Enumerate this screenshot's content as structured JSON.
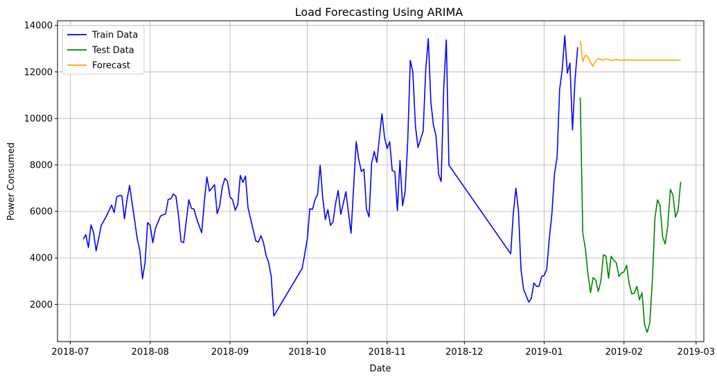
{
  "chart_data": {
    "type": "line",
    "title": "Load Forecasting Using ARIMA",
    "xlabel": "Date",
    "ylabel": "Power Consumed",
    "xlim": [
      "2018-06-26",
      "2019-03-04"
    ],
    "ylim": [
      400,
      14200
    ],
    "x_ticks": [
      "2018-07",
      "2018-08",
      "2018-09",
      "2018-10",
      "2018-11",
      "2018-12",
      "2019-01",
      "2019-02",
      "2019-03"
    ],
    "y_ticks": [
      2000,
      4000,
      6000,
      8000,
      10000,
      12000,
      14000
    ],
    "grid": true,
    "legend_position": "top-left",
    "series": [
      {
        "name": "Train Data",
        "color": "#0000ff",
        "points": [
          [
            "2018-07-06",
            4800
          ],
          [
            "2018-07-07",
            5000
          ],
          [
            "2018-07-08",
            4450
          ],
          [
            "2018-07-09",
            5420
          ],
          [
            "2018-07-10",
            5100
          ],
          [
            "2018-07-11",
            4300
          ],
          [
            "2018-07-13",
            5400
          ],
          [
            "2018-07-15",
            5800
          ],
          [
            "2018-07-17",
            6270
          ],
          [
            "2018-07-18",
            5950
          ],
          [
            "2018-07-19",
            6620
          ],
          [
            "2018-07-20",
            6680
          ],
          [
            "2018-07-21",
            6680
          ],
          [
            "2018-07-22",
            5680
          ],
          [
            "2018-07-23",
            6500
          ],
          [
            "2018-07-24",
            7120
          ],
          [
            "2018-07-27",
            4800
          ],
          [
            "2018-07-28",
            4300
          ],
          [
            "2018-07-29",
            3100
          ],
          [
            "2018-07-30",
            3800
          ],
          [
            "2018-07-31",
            5520
          ],
          [
            "2018-08-01",
            5400
          ],
          [
            "2018-08-02",
            4650
          ],
          [
            "2018-08-03",
            5260
          ],
          [
            "2018-08-05",
            5800
          ],
          [
            "2018-08-07",
            5900
          ],
          [
            "2018-08-08",
            6520
          ],
          [
            "2018-08-09",
            6540
          ],
          [
            "2018-08-10",
            6750
          ],
          [
            "2018-08-11",
            6650
          ],
          [
            "2018-08-12",
            5800
          ],
          [
            "2018-08-13",
            4700
          ],
          [
            "2018-08-14",
            4660
          ],
          [
            "2018-08-16",
            6500
          ],
          [
            "2018-08-17",
            6130
          ],
          [
            "2018-08-18",
            6100
          ],
          [
            "2018-08-19",
            5700
          ],
          [
            "2018-08-21",
            5080
          ],
          [
            "2018-08-22",
            6400
          ],
          [
            "2018-08-23",
            7480
          ],
          [
            "2018-08-24",
            6870
          ],
          [
            "2018-08-26",
            7150
          ],
          [
            "2018-08-27",
            5900
          ],
          [
            "2018-08-28",
            6250
          ],
          [
            "2018-08-29",
            7050
          ],
          [
            "2018-08-30",
            7420
          ],
          [
            "2018-08-31",
            7300
          ],
          [
            "2018-09-01",
            6620
          ],
          [
            "2018-09-02",
            6500
          ],
          [
            "2018-09-03",
            6050
          ],
          [
            "2018-09-04",
            6290
          ],
          [
            "2018-09-05",
            7550
          ],
          [
            "2018-09-06",
            7250
          ],
          [
            "2018-09-07",
            7520
          ],
          [
            "2018-09-08",
            6150
          ],
          [
            "2018-09-11",
            4730
          ],
          [
            "2018-09-12",
            4680
          ],
          [
            "2018-09-13",
            4950
          ],
          [
            "2018-09-14",
            4650
          ],
          [
            "2018-09-15",
            4100
          ],
          [
            "2018-09-16",
            3800
          ],
          [
            "2018-09-17",
            3200
          ],
          [
            "2018-09-18",
            1500
          ],
          [
            "2018-09-29",
            3550
          ],
          [
            "2018-09-30",
            4150
          ],
          [
            "2018-10-01",
            4800
          ],
          [
            "2018-10-02",
            6120
          ],
          [
            "2018-10-03",
            6080
          ],
          [
            "2018-10-04",
            6500
          ],
          [
            "2018-10-05",
            6730
          ],
          [
            "2018-10-06",
            7980
          ],
          [
            "2018-10-07",
            6600
          ],
          [
            "2018-10-08",
            5650
          ],
          [
            "2018-10-09",
            6080
          ],
          [
            "2018-10-10",
            5400
          ],
          [
            "2018-10-11",
            5550
          ],
          [
            "2018-10-12",
            6350
          ],
          [
            "2018-10-13",
            6900
          ],
          [
            "2018-10-14",
            5880
          ],
          [
            "2018-10-15",
            6350
          ],
          [
            "2018-10-16",
            6850
          ],
          [
            "2018-10-17",
            5950
          ],
          [
            "2018-10-18",
            5060
          ],
          [
            "2018-10-19",
            7050
          ],
          [
            "2018-10-20",
            9000
          ],
          [
            "2018-10-21",
            8230
          ],
          [
            "2018-10-22",
            7720
          ],
          [
            "2018-10-23",
            7820
          ],
          [
            "2018-10-24",
            6080
          ],
          [
            "2018-10-25",
            5760
          ],
          [
            "2018-10-26",
            8080
          ],
          [
            "2018-10-27",
            8580
          ],
          [
            "2018-10-28",
            8110
          ],
          [
            "2018-10-29",
            9150
          ],
          [
            "2018-10-30",
            10200
          ],
          [
            "2018-10-31",
            9190
          ],
          [
            "2018-11-01",
            8700
          ],
          [
            "2018-11-02",
            9000
          ],
          [
            "2018-11-03",
            7750
          ],
          [
            "2018-11-04",
            7720
          ],
          [
            "2018-11-05",
            6030
          ],
          [
            "2018-11-06",
            8200
          ],
          [
            "2018-11-07",
            6250
          ],
          [
            "2018-11-08",
            6850
          ],
          [
            "2018-11-09",
            9000
          ],
          [
            "2018-11-10",
            12500
          ],
          [
            "2018-11-11",
            12000
          ],
          [
            "2018-11-12",
            9670
          ],
          [
            "2018-11-13",
            8750
          ],
          [
            "2018-11-15",
            9450
          ],
          [
            "2018-11-16",
            12100
          ],
          [
            "2018-11-17",
            13430
          ],
          [
            "2018-11-18",
            10700
          ],
          [
            "2018-11-19",
            9700
          ],
          [
            "2018-11-20",
            9250
          ],
          [
            "2018-11-21",
            7600
          ],
          [
            "2018-11-22",
            7280
          ],
          [
            "2018-11-23",
            11350
          ],
          [
            "2018-11-24",
            13380
          ],
          [
            "2018-11-25",
            7990
          ],
          [
            "2018-12-19",
            4180
          ],
          [
            "2018-12-20",
            5900
          ],
          [
            "2018-12-21",
            7000
          ],
          [
            "2018-12-22",
            6050
          ],
          [
            "2018-12-23",
            3500
          ],
          [
            "2018-12-24",
            2650
          ],
          [
            "2018-12-26",
            2100
          ],
          [
            "2018-12-27",
            2260
          ],
          [
            "2018-12-28",
            2920
          ],
          [
            "2018-12-29",
            2780
          ],
          [
            "2018-12-30",
            2780
          ],
          [
            "2018-12-31",
            3200
          ],
          [
            "2019-01-01",
            3250
          ],
          [
            "2019-01-02",
            3520
          ],
          [
            "2019-01-03",
            4850
          ],
          [
            "2019-01-04",
            5900
          ],
          [
            "2019-01-05",
            7620
          ],
          [
            "2019-01-06",
            8300
          ],
          [
            "2019-01-07",
            11250
          ],
          [
            "2019-01-08",
            12100
          ],
          [
            "2019-01-09",
            13560
          ],
          [
            "2019-01-10",
            11950
          ],
          [
            "2019-01-11",
            12380
          ],
          [
            "2019-01-12",
            9500
          ],
          [
            "2019-01-13",
            11700
          ],
          [
            "2019-01-14",
            13060
          ]
        ]
      },
      {
        "name": "Test Data",
        "color": "#008000",
        "points": [
          [
            "2019-01-15",
            10900
          ],
          [
            "2019-01-16",
            5050
          ],
          [
            "2019-01-17",
            4400
          ],
          [
            "2019-01-18",
            3300
          ],
          [
            "2019-01-19",
            2510
          ],
          [
            "2019-01-20",
            3150
          ],
          [
            "2019-01-21",
            3050
          ],
          [
            "2019-01-22",
            2550
          ],
          [
            "2019-01-23",
            3000
          ],
          [
            "2019-01-24",
            4130
          ],
          [
            "2019-01-25",
            4080
          ],
          [
            "2019-01-26",
            3120
          ],
          [
            "2019-01-27",
            4070
          ],
          [
            "2019-01-28",
            3900
          ],
          [
            "2019-01-29",
            3800
          ],
          [
            "2019-01-30",
            3200
          ],
          [
            "2019-01-31",
            3350
          ],
          [
            "2019-02-01",
            3400
          ],
          [
            "2019-02-02",
            3680
          ],
          [
            "2019-02-03",
            2900
          ],
          [
            "2019-02-04",
            2450
          ],
          [
            "2019-02-05",
            2480
          ],
          [
            "2019-02-06",
            2780
          ],
          [
            "2019-02-07",
            2200
          ],
          [
            "2019-02-08",
            2500
          ],
          [
            "2019-02-09",
            1120
          ],
          [
            "2019-02-10",
            800
          ],
          [
            "2019-02-11",
            1200
          ],
          [
            "2019-02-12",
            3000
          ],
          [
            "2019-02-13",
            5700
          ],
          [
            "2019-02-14",
            6500
          ],
          [
            "2019-02-15",
            6250
          ],
          [
            "2019-02-16",
            4900
          ],
          [
            "2019-02-17",
            4600
          ],
          [
            "2019-02-18",
            5400
          ],
          [
            "2019-02-19",
            6950
          ],
          [
            "2019-02-20",
            6700
          ],
          [
            "2019-02-21",
            5750
          ],
          [
            "2019-02-22",
            6060
          ],
          [
            "2019-02-23",
            7270
          ]
        ]
      },
      {
        "name": "Forecast",
        "color": "#ffa500",
        "points": [
          [
            "2019-01-15",
            13360
          ],
          [
            "2019-01-16",
            12450
          ],
          [
            "2019-01-17",
            12720
          ],
          [
            "2019-01-18",
            12650
          ],
          [
            "2019-01-19",
            12400
          ],
          [
            "2019-01-20",
            12240
          ],
          [
            "2019-01-21",
            12480
          ],
          [
            "2019-01-22",
            12580
          ],
          [
            "2019-01-23",
            12530
          ],
          [
            "2019-01-24",
            12500
          ],
          [
            "2019-01-25",
            12560
          ],
          [
            "2019-01-26",
            12530
          ],
          [
            "2019-01-27",
            12490
          ],
          [
            "2019-01-28",
            12510
          ],
          [
            "2019-01-29",
            12530
          ],
          [
            "2019-01-30",
            12510
          ],
          [
            "2019-01-31",
            12500
          ],
          [
            "2019-02-01",
            12520
          ],
          [
            "2019-02-02",
            12510
          ],
          [
            "2019-02-03",
            12510
          ],
          [
            "2019-02-04",
            12510
          ],
          [
            "2019-02-05",
            12510
          ],
          [
            "2019-02-06",
            12510
          ],
          [
            "2019-02-07",
            12510
          ],
          [
            "2019-02-08",
            12510
          ],
          [
            "2019-02-09",
            12510
          ],
          [
            "2019-02-10",
            12510
          ],
          [
            "2019-02-11",
            12510
          ],
          [
            "2019-02-12",
            12510
          ],
          [
            "2019-02-13",
            12510
          ],
          [
            "2019-02-14",
            12510
          ],
          [
            "2019-02-15",
            12510
          ],
          [
            "2019-02-16",
            12510
          ],
          [
            "2019-02-17",
            12510
          ],
          [
            "2019-02-18",
            12510
          ],
          [
            "2019-02-19",
            12510
          ],
          [
            "2019-02-20",
            12510
          ],
          [
            "2019-02-21",
            12510
          ],
          [
            "2019-02-22",
            12510
          ],
          [
            "2019-02-23",
            12510
          ]
        ]
      }
    ]
  }
}
